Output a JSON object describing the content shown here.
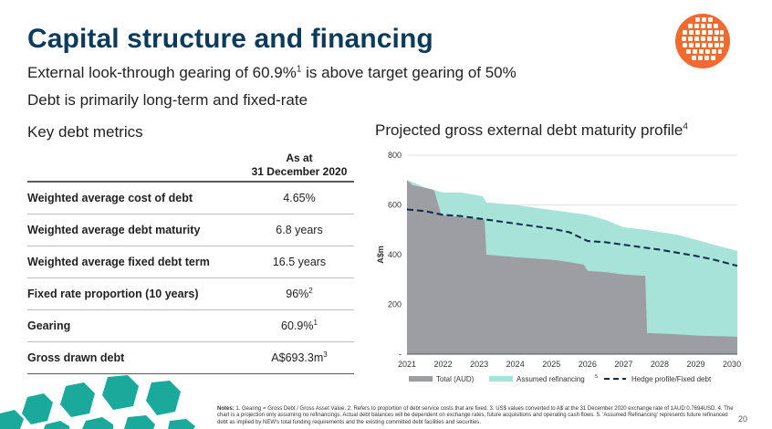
{
  "header": {
    "title": "Capital structure and financing",
    "subtitle1": "External look-through gearing of 60.9%",
    "subtitle1_sup": "1",
    "subtitle1_rest": " is above target gearing of 50%",
    "subtitle2": "Debt is primarily long-term and fixed-rate"
  },
  "table": {
    "heading": "Key debt metrics",
    "as_at_line1": "As at",
    "as_at_line2": "31 December 2020",
    "rows": [
      {
        "label": "Weighted average cost of debt",
        "value": "4.65%",
        "sup": ""
      },
      {
        "label": "Weighted average debt maturity",
        "value": "6.8 years",
        "sup": ""
      },
      {
        "label": "Weighted average fixed debt term",
        "value": "16.5 years",
        "sup": ""
      },
      {
        "label": "Fixed rate proportion (10 years)",
        "value": "96%",
        "sup": "2"
      },
      {
        "label": "Gearing",
        "value": "60.9%",
        "sup": "1"
      },
      {
        "label": "Gross drawn debt",
        "value": "A$693.3m",
        "sup": "3"
      }
    ]
  },
  "chart_data": {
    "type": "area",
    "title": "Projected gross external debt maturity profile",
    "title_sup": "4",
    "ylabel": "A$m",
    "ylim": [
      0,
      800
    ],
    "yticks": [
      0,
      200,
      400,
      600,
      800
    ],
    "ytick_labels": [
      "-",
      "200",
      "400",
      "600",
      "800"
    ],
    "x_labels": [
      "2021",
      "2022",
      "2023",
      "2024",
      "2025",
      "2026",
      "2027",
      "2028",
      "2029",
      "2030"
    ],
    "x_range": [
      2021,
      2030.15
    ],
    "series": [
      {
        "name": "Total (AUD)",
        "color": "#9d9ea4",
        "x": [
          2021.0,
          2021.15,
          2021.45,
          2021.75,
          2021.95,
          2022.5,
          2023.15,
          2023.2,
          2024.0,
          2025.0,
          2025.5,
          2025.9,
          2026.0,
          2026.5,
          2027.0,
          2027.6,
          2027.65,
          2028.5,
          2029.0,
          2030.15
        ],
        "y": [
          700,
          680,
          670,
          660,
          560,
          550,
          540,
          400,
          390,
          380,
          370,
          360,
          335,
          330,
          320,
          315,
          85,
          80,
          75,
          70
        ]
      },
      {
        "name": "Assumed refinancing",
        "name_sup": "5",
        "color": "#a7e3d8",
        "x": [
          2021.0,
          2021.5,
          2022.0,
          2022.5,
          2023.1,
          2023.2,
          2024.0,
          2025.0,
          2026.0,
          2026.5,
          2027.0,
          2027.6,
          2028.5,
          2029.0,
          2029.5,
          2030.15
        ],
        "y": [
          700,
          670,
          650,
          650,
          635,
          610,
          600,
          580,
          560,
          540,
          510,
          500,
          480,
          460,
          440,
          415
        ]
      },
      {
        "name": "Hedge profile/Fixed debt",
        "color": "#0d2b4a",
        "style": "dashed",
        "x": [
          2021.0,
          2021.5,
          2022.0,
          2022.5,
          2023.0,
          2023.5,
          2024.0,
          2025.0,
          2025.5,
          2026.0,
          2026.5,
          2027.0,
          2027.5,
          2028.0,
          2029.0,
          2029.5,
          2030.15
        ],
        "y": [
          582,
          575,
          560,
          555,
          545,
          535,
          525,
          505,
          490,
          455,
          450,
          440,
          430,
          420,
          395,
          380,
          355
        ]
      }
    ]
  },
  "footer": {
    "notes_label": "Notes:",
    "notes_text": "1. Gearing = Gross Debt / Gross Asset Value. 2. Refers to proportion of debt service costs that are fixed. 3. US$ values converted to A$ at the 31 December 2020 exchange rate of 1AUD:0.7694USD. 4. The chart is a projection only assuming no refinancings. Actual debt balances will be dependent on exchange rates, future acquisitions and operating cash flows. 5. 'Assumed Refinancing' represents future refinanced debt as implied by NEW's total funding requirements and the existing committed debt facilities and securities.",
    "page_number": "20"
  },
  "colors": {
    "title": "#0b3b5a",
    "logo": "#f26a2e",
    "decor": "#1aa99a"
  }
}
